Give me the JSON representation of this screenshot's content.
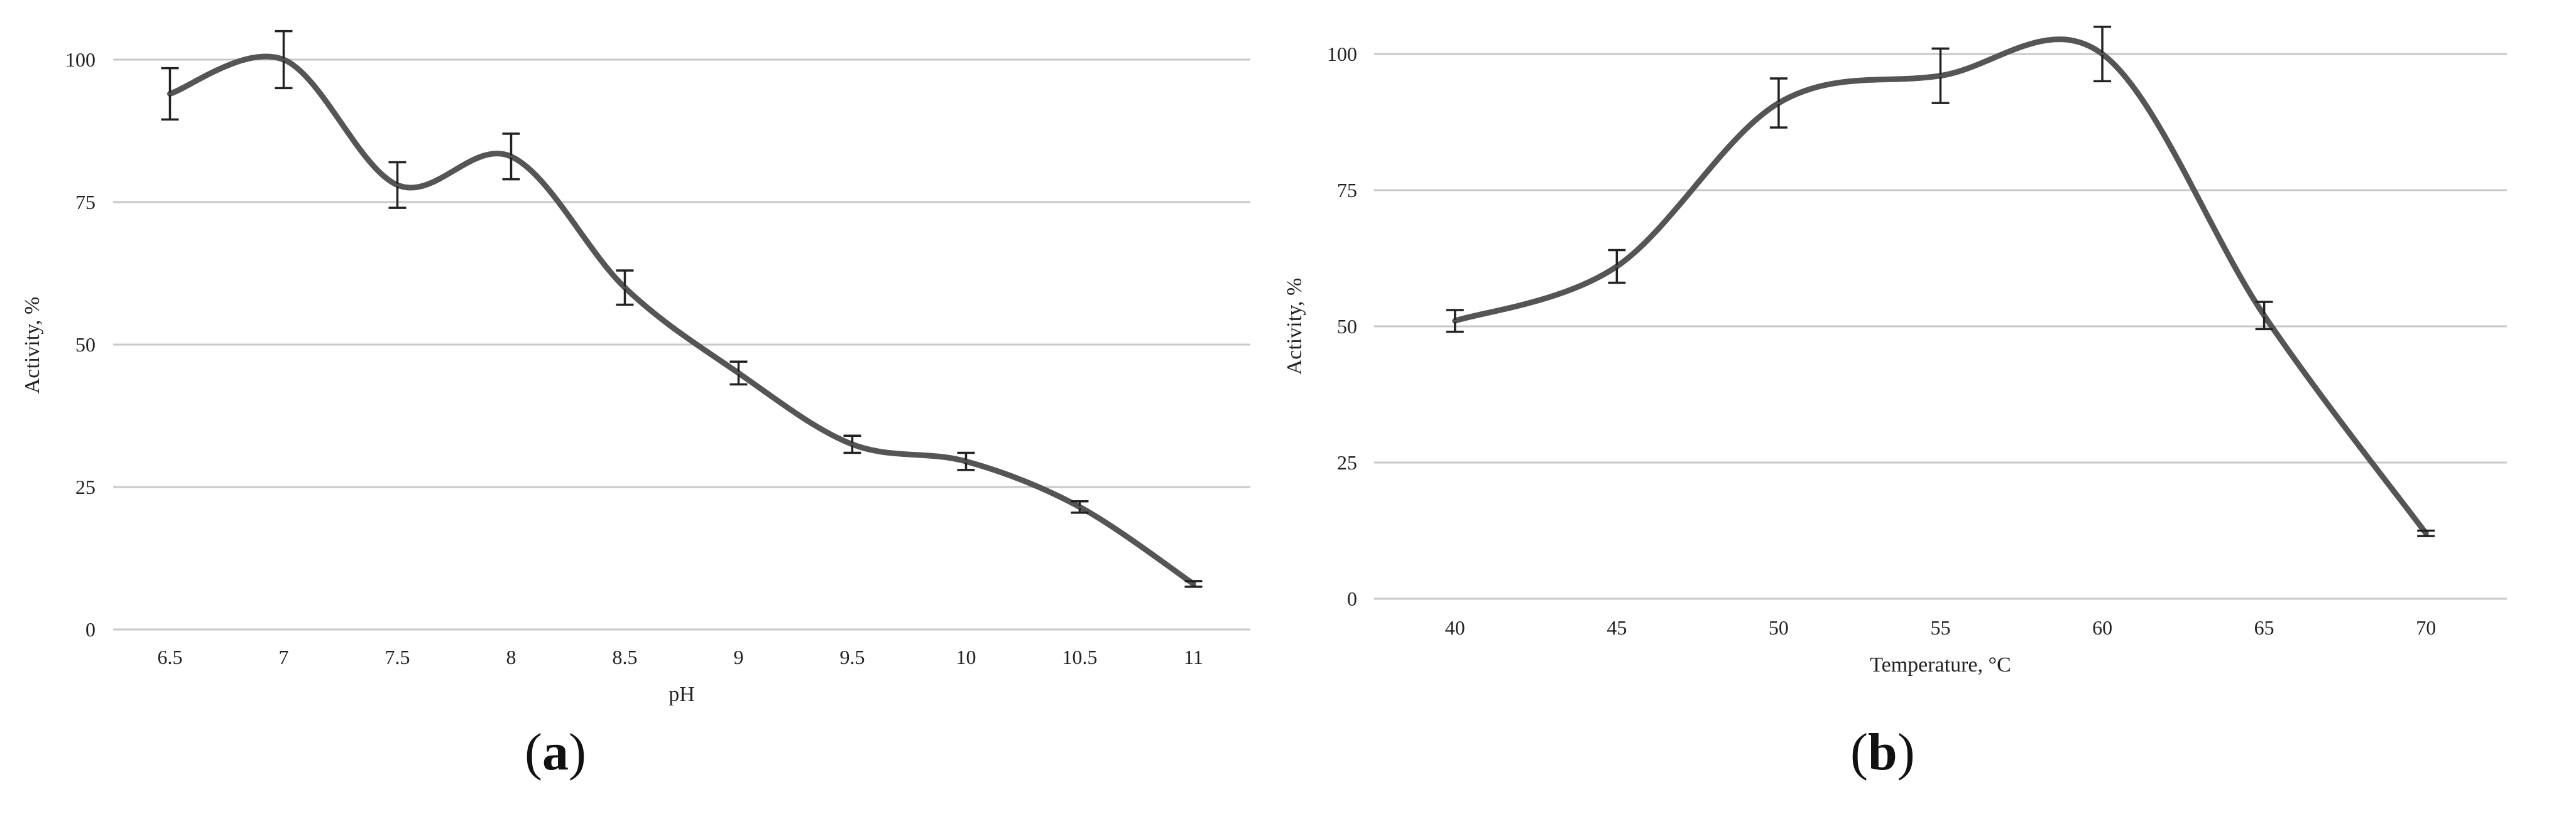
{
  "figure": {
    "panel_a_label": "a",
    "panel_b_label": "b",
    "colors": {
      "line": "#555555",
      "grid": "#c8c8c8",
      "error_bar": "#222222",
      "text": "#222222"
    }
  },
  "chart_data": [
    {
      "type": "line",
      "panel": "a",
      "title": "",
      "xlabel": "pH",
      "ylabel": "Activity, %",
      "categories": [
        "6.5",
        "7",
        "7.5",
        "8",
        "8.5",
        "9",
        "9.5",
        "10",
        "10.5",
        "11"
      ],
      "series": [
        {
          "values": [
            94,
            100,
            78,
            83,
            60,
            45,
            32.5,
            29.5,
            21.5,
            8
          ],
          "errors": [
            4.5,
            5,
            4,
            4,
            3,
            2,
            1.5,
            1.5,
            1,
            0.5
          ]
        }
      ],
      "ylim": [
        0,
        100
      ],
      "yticks": [
        0,
        25,
        50,
        75,
        100
      ],
      "grid": true,
      "smooth": true
    },
    {
      "type": "line",
      "panel": "b",
      "title": "",
      "xlabel": "Temperature, °C",
      "ylabel": "Activity, %",
      "categories": [
        "40",
        "45",
        "50",
        "55",
        "60",
        "65",
        "70"
      ],
      "series": [
        {
          "values": [
            51,
            61,
            91,
            96,
            100,
            52,
            12
          ],
          "errors": [
            2,
            3,
            4.5,
            5,
            5,
            2.5,
            0.5
          ]
        }
      ],
      "ylim": [
        0,
        100
      ],
      "yticks": [
        0,
        25,
        50,
        75,
        100
      ],
      "grid": true,
      "smooth": true
    }
  ]
}
